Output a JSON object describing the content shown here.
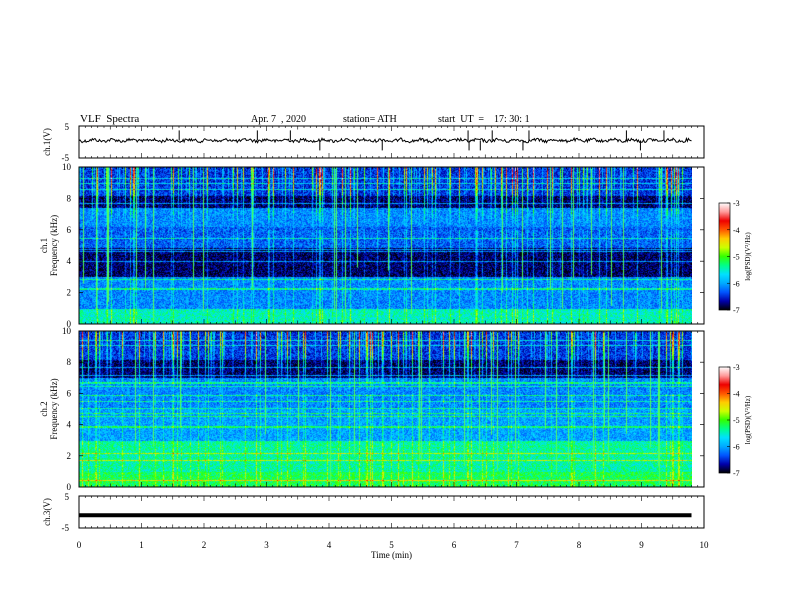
{
  "header": {
    "title": "VLF  Spectra",
    "date": "Apr. 7  , 2020",
    "station": "station= ATH",
    "start": "start  UT  =    17: 30: 1"
  },
  "chart_data": [
    {
      "type": "line",
      "panel": "ch1-waveform",
      "ylabel": "ch.1(V)",
      "ylim": [
        -5,
        5
      ],
      "yticks": [
        "5",
        "-5"
      ],
      "xlim": [
        0,
        10
      ],
      "trace_level_v": 0.5,
      "color": "#000000"
    },
    {
      "type": "heatmap",
      "panel": "ch1-spectrogram",
      "ylabel": "ch.1\nFrequency  (kHz)",
      "ylim": [
        0,
        10
      ],
      "yticks": [
        "0",
        "2",
        "4",
        "6",
        "8",
        "10"
      ],
      "xlim": [
        0,
        9.8
      ],
      "colorbar": {
        "label": "log(PSD)(V²/Hz)",
        "range": [
          -7,
          -3
        ],
        "ticks": [
          "-3",
          "-4",
          "-5",
          "-6",
          "-7"
        ],
        "colors": [
          "#000000",
          "#0000aa",
          "#0055ff",
          "#00aaff",
          "#00e0ff",
          "#00ff88",
          "#33ff00",
          "#ccff00",
          "#ffcc00",
          "#ff5500",
          "#ee0000",
          "#ff9999",
          "#ffffff"
        ]
      }
    },
    {
      "type": "heatmap",
      "panel": "ch2-spectrogram",
      "ylabel": "ch.2\nFrequency  (kHz)",
      "ylim": [
        0,
        10
      ],
      "yticks": [
        "0",
        "2",
        "4",
        "6",
        "8",
        "10"
      ],
      "xlim": [
        0,
        9.8
      ],
      "colorbar": {
        "label": "log(PSD)(V²/Hz)",
        "range": [
          -7,
          -3
        ],
        "ticks": [
          "-3",
          "-4",
          "-5",
          "-6",
          "-7"
        ]
      }
    },
    {
      "type": "line",
      "panel": "ch3-waveform",
      "ylabel": "ch.3(V)",
      "ylim": [
        -5,
        5
      ],
      "yticks": [
        "5",
        "-5"
      ],
      "xlim": [
        0,
        10
      ],
      "trace_level_v": -1,
      "color": "#000000"
    }
  ],
  "xaxis": {
    "label": "Time  (min)",
    "ticks": [
      "0",
      "1",
      "2",
      "3",
      "4",
      "5",
      "6",
      "7",
      "8",
      "9",
      "10"
    ]
  }
}
